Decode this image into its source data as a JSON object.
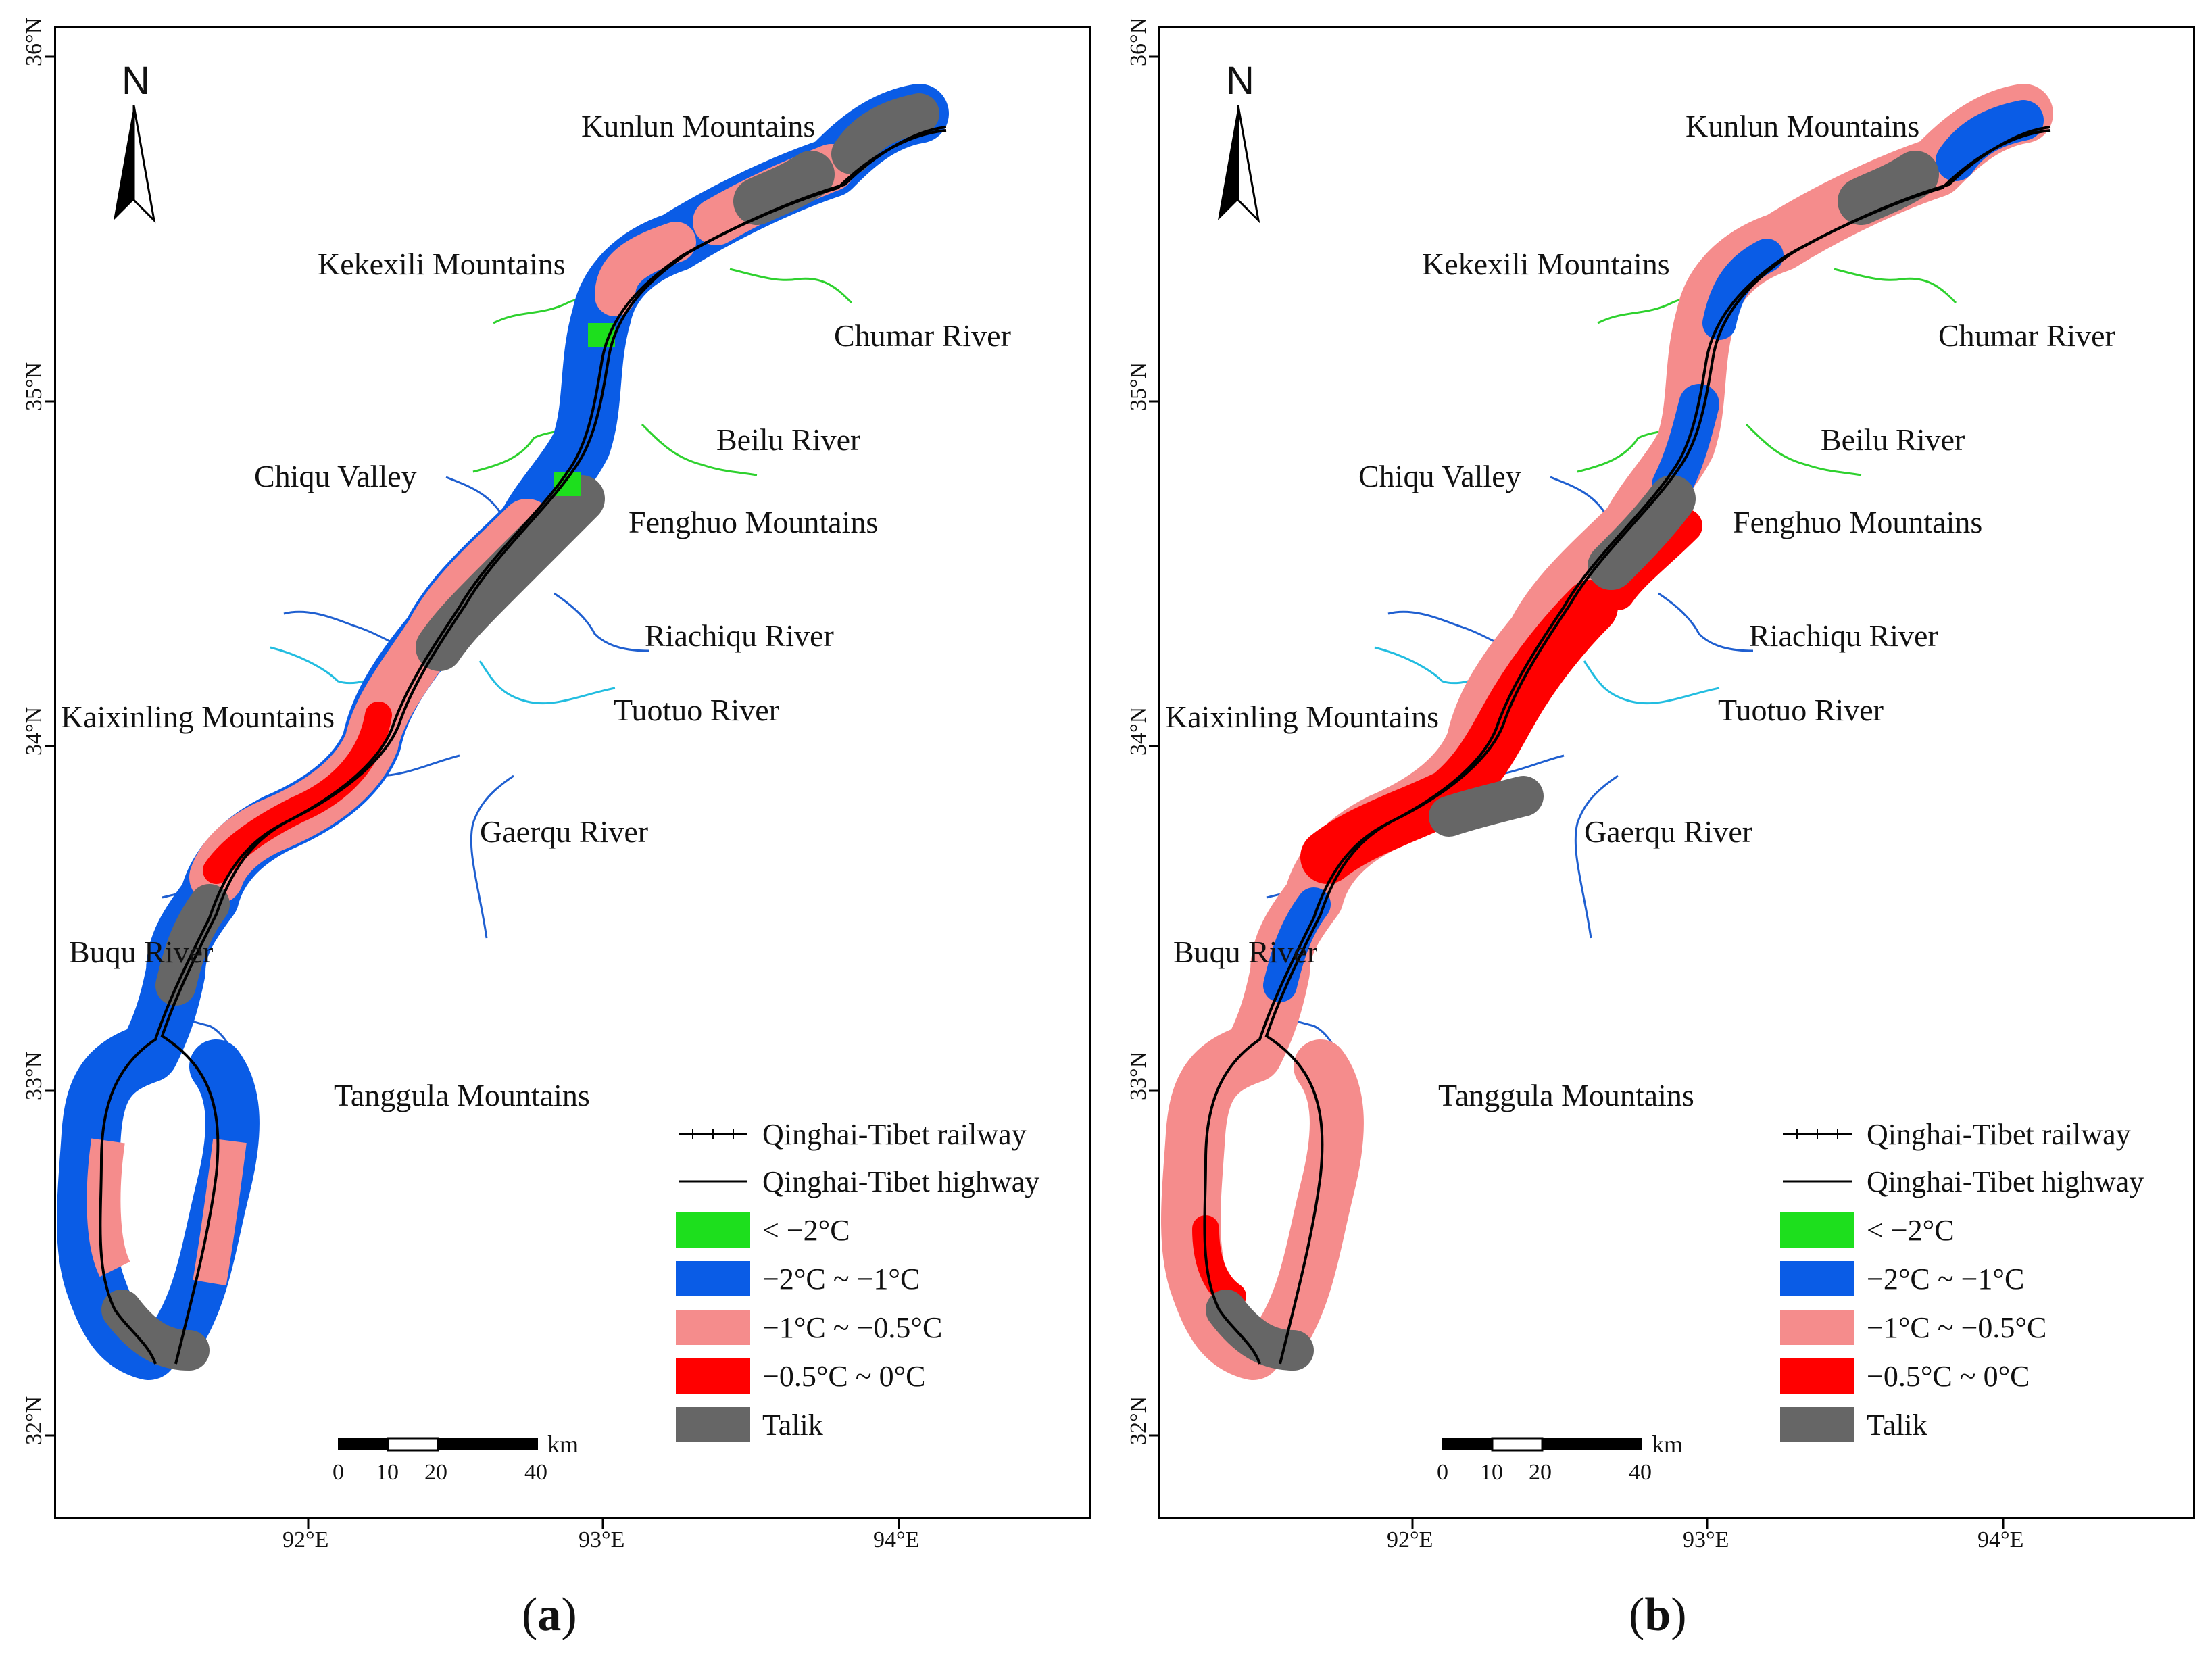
{
  "panels": [
    {
      "id": "a",
      "caption_open": "(",
      "caption_letter": "a",
      "caption_close": ")",
      "north_label": "N",
      "lat_ticks": [
        "36°N",
        "35°N",
        "34°N",
        "33°N",
        "32°N"
      ],
      "lon_ticks": [
        "92°E",
        "93°E",
        "94°E"
      ],
      "places": {
        "kunlun": "Kunlun Mountains",
        "kekexili": "Kekexili Mountains",
        "chumar": "Chumar River",
        "beilu": "Beilu River",
        "chiqu": "Chiqu Valley",
        "fenghuo": "Fenghuo Mountains",
        "riachiqu": "Riachiqu River",
        "kaixinling": "Kaixinling Mountains",
        "tuotuo": "Tuotuo River",
        "gaerqu": "Gaerqu River",
        "buqu": "Buqu River",
        "tanggula": "Tanggula Mountains"
      },
      "legend": {
        "railway": "Qinghai-Tibet railway",
        "highway": "Qinghai-Tibet highway",
        "c1": "< −2°C",
        "c2": "−2°C ~ −1°C",
        "c3": "−1°C ~ −0.5°C",
        "c4": "−0.5°C ~ 0°C",
        "c5": "Talik"
      },
      "scale": {
        "unit": "km",
        "t0": "0",
        "t10": "10",
        "t20": "20",
        "t40": "40"
      }
    },
    {
      "id": "b",
      "caption_open": "(",
      "caption_letter": "b",
      "caption_close": ")",
      "north_label": "N",
      "lat_ticks": [
        "36°N",
        "35°N",
        "34°N",
        "33°N",
        "32°N"
      ],
      "lon_ticks": [
        "92°E",
        "93°E",
        "94°E"
      ],
      "places": {
        "kunlun": "Kunlun Mountains",
        "kekexili": "Kekexili Mountains",
        "chumar": "Chumar River",
        "beilu": "Beilu River",
        "chiqu": "Chiqu Valley",
        "fenghuo": "Fenghuo Mountains",
        "riachiqu": "Riachiqu River",
        "kaixinling": "Kaixinling Mountains",
        "tuotuo": "Tuotuo River",
        "gaerqu": "Gaerqu River",
        "buqu": "Buqu River",
        "tanggula": "Tanggula Mountains"
      },
      "legend": {
        "railway": "Qinghai-Tibet railway",
        "highway": "Qinghai-Tibet highway",
        "c1": "< −2°C",
        "c2": "−2°C ~ −1°C",
        "c3": "−1°C ~ −0.5°C",
        "c4": "−0.5°C ~ 0°C",
        "c5": "Talik"
      },
      "scale": {
        "unit": "km",
        "t0": "0",
        "t10": "10",
        "t20": "20",
        "t40": "40"
      }
    }
  ],
  "colors": {
    "c1": "#1ddf1d",
    "c2": "#0a5ce6",
    "c3": "#f58c8c",
    "c4": "#ff0000",
    "c5": "#666666",
    "river_blue": "#1f5fd0",
    "river_cyan": "#22bde0",
    "river_green": "#2ed12e"
  }
}
